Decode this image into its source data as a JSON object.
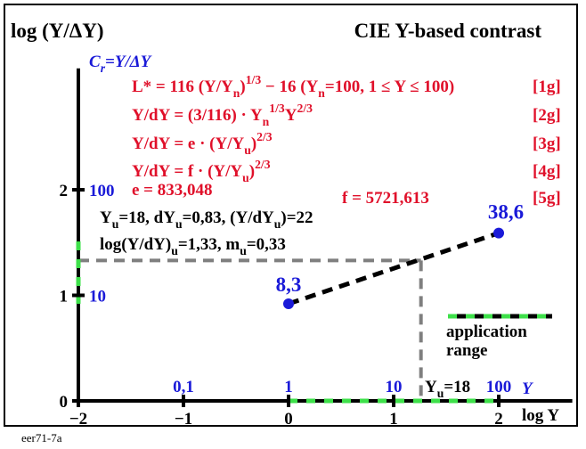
{
  "chart_data": {
    "type": "line",
    "title": "CIE Y-based contrast",
    "y_label": [
      "log (Y/ΔY)"
    ],
    "y2_label": [
      "C",
      "r",
      "=Y/ΔY"
    ],
    "x_label": [
      "log ",
      "Y"
    ],
    "xlim": [
      -2,
      2.7
    ],
    "ylim": [
      0,
      3.15
    ],
    "xticks": [
      {
        "value": -2,
        "label": "−2"
      },
      {
        "value": -1,
        "label": "−1"
      },
      0,
      1,
      2
    ],
    "yticks": [
      0,
      1,
      2
    ],
    "x_secondary_ticks": [
      {
        "value": -1,
        "label": "0,1"
      },
      {
        "value": 0,
        "label": "1"
      },
      {
        "value": 1,
        "label": "10"
      },
      {
        "value": 2,
        "label": "100"
      }
    ],
    "x_secondary_label": "Y",
    "y_secondary_ticks": [
      {
        "value": 1,
        "label": "10"
      },
      {
        "value": 2,
        "label": "100"
      }
    ],
    "series": [
      {
        "name": "application range",
        "color": "#1a1ad8",
        "x": [
          0,
          2
        ],
        "values": [
          0.92,
          1.59
        ],
        "point_labels": [
          "8,3",
          "38,6"
        ]
      }
    ],
    "reference": {
      "x": 1.26,
      "y": 1.33,
      "label": [
        "Y",
        "u",
        "=18"
      ]
    },
    "formulas": [
      [
        "L* = 116 (Y/Y",
        "n",
        ")",
        "1/3",
        " − 16  (Y",
        "n",
        "=100, 1 ≤ Y ≤ 100)"
      ],
      [
        "Y/dY = (3/116) · Y",
        "n",
        "1/3",
        "Y",
        "2/3"
      ],
      [
        "Y/dY = e · (Y/Y",
        "u",
        ")",
        "2/3"
      ],
      [
        "Y/dY = f · (Y/Y",
        "u",
        ")",
        "2/3"
      ]
    ],
    "equation_tags": [
      "[1g]",
      "[2g]",
      "[3g]",
      "[4g]",
      "[5g]"
    ],
    "constants": [
      "e = 833,048",
      "f = 5721,613"
    ],
    "notes": [
      [
        "Y",
        "u",
        "=18, dY",
        "u",
        "=0,83, (Y/dY",
        "u",
        ")=22"
      ],
      [
        "log(Y/dY)",
        "u",
        "=1,33, m",
        "u",
        "=0,33"
      ]
    ],
    "footer": "eer71-7a"
  }
}
